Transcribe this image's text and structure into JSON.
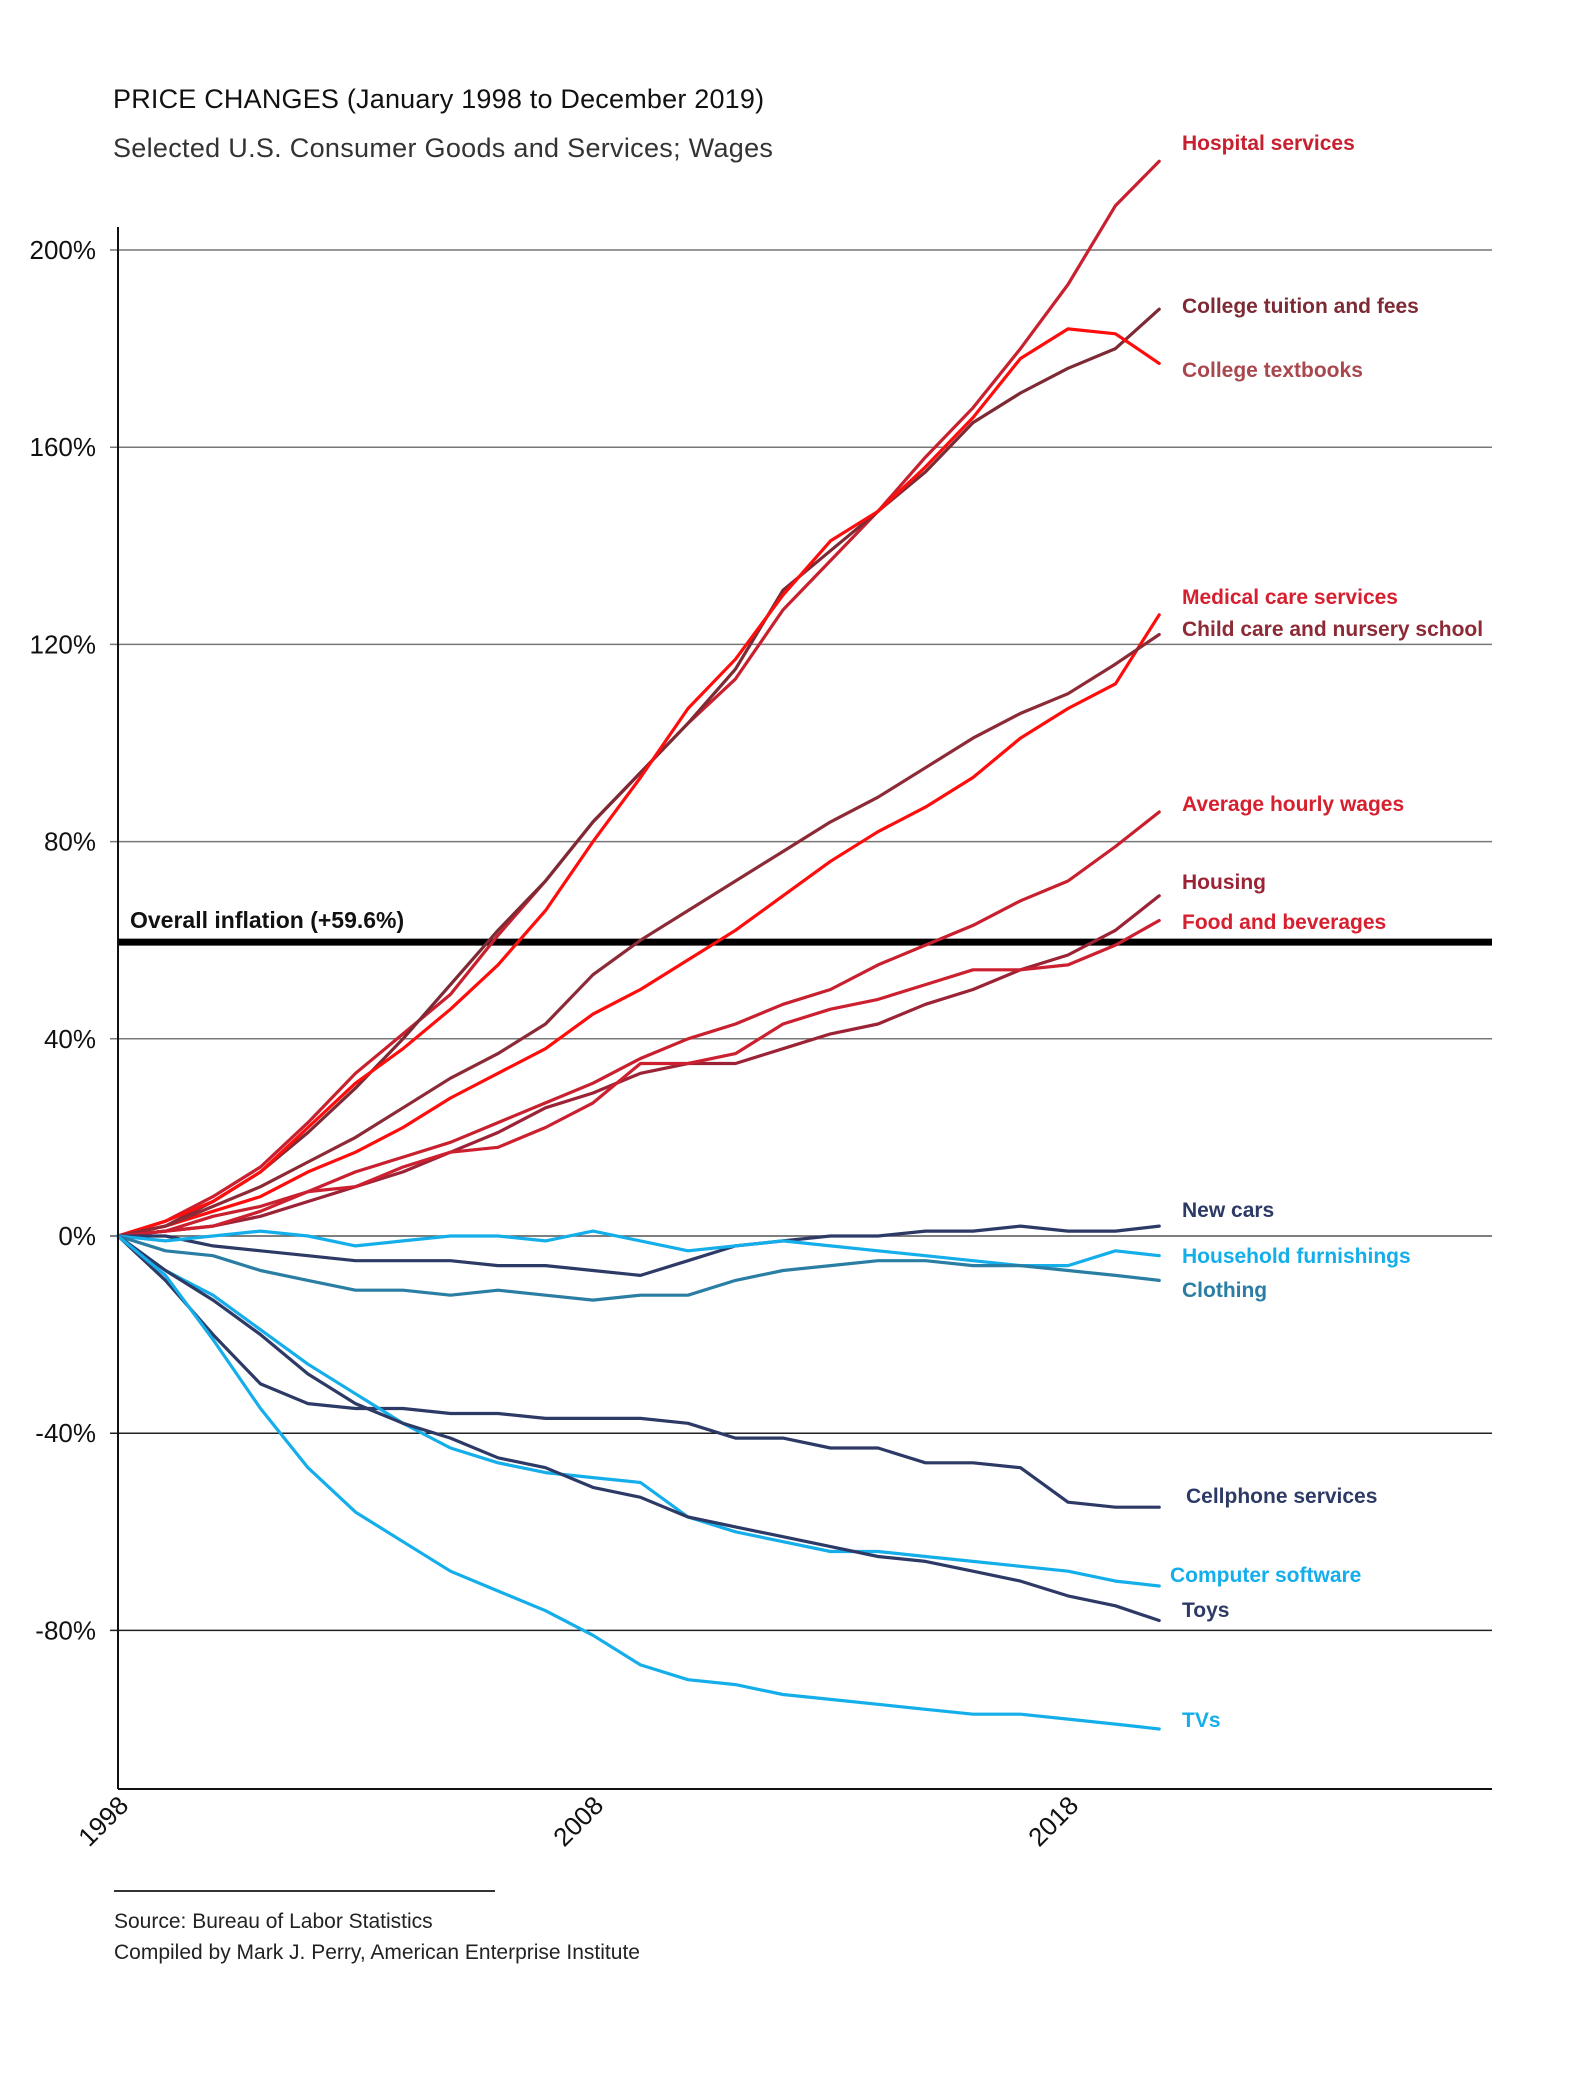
{
  "header": {
    "title": "PRICE CHANGES (January 1998 to December 2019)",
    "subtitle": "Selected U.S. Consumer Goods and Services; Wages"
  },
  "footer": {
    "source": "Source:  Bureau of Labor Statistics",
    "compiled": "Compiled by Mark J. Perry, American Enterprise Institute"
  },
  "chart_data": {
    "type": "line",
    "title": "PRICE CHANGES (January 1998 to December 2019)",
    "subtitle": "Selected U.S. Consumer Goods and Services; Wages",
    "xlabel": "",
    "ylabel": "",
    "x": [
      1998,
      1999,
      2000,
      2001,
      2002,
      2003,
      2004,
      2005,
      2006,
      2007,
      2008,
      2009,
      2010,
      2011,
      2012,
      2013,
      2014,
      2015,
      2016,
      2017,
      2018,
      2019,
      2019.92
    ],
    "xlim": [
      1998,
      2027
    ],
    "ylim": [
      -112,
      205
    ],
    "grid": true,
    "x_ticks": [
      {
        "value": 1998,
        "label": "1998"
      },
      {
        "value": 2008,
        "label": "2008"
      },
      {
        "value": 2018,
        "label": "2018"
      }
    ],
    "y_ticks": [
      {
        "value": 200,
        "label": "200%"
      },
      {
        "value": 160,
        "label": "160%"
      },
      {
        "value": 120,
        "label": "120%"
      },
      {
        "value": 80,
        "label": "80%"
      },
      {
        "value": 40,
        "label": "40%"
      },
      {
        "value": 0,
        "label": "0%"
      },
      {
        "value": -40,
        "label": "-40%"
      },
      {
        "value": -80,
        "label": "-80%"
      }
    ],
    "reference_line": {
      "value": 59.6,
      "label": "Overall inflation (+59.6%)",
      "color": "#000000"
    },
    "legend": "direct labels at right end of each line",
    "series": [
      {
        "name": "Hospital services",
        "color": "#c8202f",
        "label_color": "#c8202f",
        "label_offset": 0,
        "values": [
          0,
          3,
          8,
          14,
          23,
          33,
          41,
          49,
          61,
          72,
          84,
          94,
          104,
          113,
          127,
          137,
          147,
          158,
          168,
          180,
          193,
          209,
          218
        ]
      },
      {
        "name": "College tuition and fees",
        "color": "#7d2a35",
        "label_color": "#7d2a35",
        "label_offset": 0,
        "values": [
          0,
          2,
          7,
          13,
          21,
          30,
          40,
          51,
          62,
          72,
          84,
          94,
          104,
          115,
          131,
          139,
          147,
          155,
          165,
          171,
          176,
          180,
          188
        ]
      },
      {
        "name": "College textbooks",
        "color": "#ff0d0d",
        "label_color": "#a9474e",
        "label_offset": 4,
        "values": [
          0,
          3,
          7,
          13,
          22,
          31,
          38,
          46,
          55,
          66,
          80,
          93,
          107,
          117,
          130,
          141,
          147,
          156,
          166,
          178,
          184,
          183,
          177
        ]
      },
      {
        "name": "Medical care services",
        "color": "#ff0d0d",
        "label_color": "#d7202f",
        "label_offset": -7,
        "values": [
          0,
          2,
          5,
          8,
          13,
          17,
          22,
          28,
          33,
          38,
          45,
          50,
          56,
          62,
          69,
          76,
          82,
          87,
          93,
          101,
          107,
          112,
          126
        ]
      },
      {
        "name": "Child care and nursery school",
        "color": "#8c2a36",
        "label_color": "#8c2a36",
        "label_offset": 2,
        "values": [
          0,
          2,
          6,
          10,
          15,
          20,
          26,
          32,
          37,
          43,
          53,
          60,
          66,
          72,
          78,
          84,
          89,
          95,
          101,
          106,
          110,
          116,
          122
        ]
      },
      {
        "name": "Average hourly wages",
        "color": "#c8202f",
        "label_color": "#d7202f",
        "label_offset": 0,
        "values": [
          0,
          1,
          4,
          6,
          9,
          13,
          16,
          19,
          23,
          27,
          31,
          36,
          40,
          43,
          47,
          50,
          55,
          59,
          63,
          68,
          72,
          79,
          86
        ]
      },
      {
        "name": "Housing",
        "color": "#9b2335",
        "label_color": "#9b2335",
        "label_offset": -2,
        "values": [
          0,
          1,
          2,
          4,
          7,
          10,
          13,
          17,
          21,
          26,
          29,
          33,
          35,
          35,
          38,
          41,
          43,
          47,
          50,
          54,
          57,
          62,
          69
        ]
      },
      {
        "name": "Food and beverages",
        "color": "#cc2030",
        "label_color": "#d7202f",
        "label_offset": 2,
        "values": [
          0,
          1,
          2,
          5,
          9,
          10,
          14,
          17,
          18,
          22,
          27,
          35,
          35,
          37,
          43,
          46,
          48,
          51,
          54,
          54,
          55,
          59,
          64
        ]
      },
      {
        "name": "New cars",
        "color": "#2d3a66",
        "label_color": "#2d3a66",
        "label_offset": 2,
        "values": [
          0,
          0,
          -2,
          -3,
          -4,
          -5,
          -5,
          -5,
          -6,
          -6,
          -7,
          -8,
          -5,
          -2,
          -1,
          0,
          0,
          1,
          1,
          2,
          1,
          1,
          2
        ]
      },
      {
        "name": "Household furnishings",
        "color": "#14aeea",
        "label_color": "#14aeea",
        "label_offset": -2,
        "values": [
          0,
          -1,
          0,
          1,
          0,
          -2,
          -1,
          0,
          0,
          -1,
          1,
          -1,
          -3,
          -2,
          -1,
          -2,
          -3,
          -4,
          -5,
          -6,
          -6,
          -3,
          -4
        ]
      },
      {
        "name": "Clothing",
        "color": "#2a7ea3",
        "label_color": "#2a7ea3",
        "label_offset": -2,
        "values": [
          0,
          -3,
          -4,
          -7,
          -9,
          -11,
          -11,
          -12,
          -11,
          -12,
          -13,
          -12,
          -12,
          -9,
          -7,
          -6,
          -5,
          -5,
          -6,
          -6,
          -7,
          -8,
          -9
        ]
      },
      {
        "name": "Cellphone services",
        "color": "#2d3a66",
        "label_color": "#2d3a66",
        "label_offset": 1,
        "values": [
          0,
          -9,
          -20,
          -30,
          -34,
          -35,
          -35,
          -36,
          -36,
          -37,
          -37,
          -37,
          -38,
          -41,
          -41,
          -43,
          -43,
          -46,
          -46,
          -47,
          -54,
          -55,
          -55
        ]
      },
      {
        "name": "Computer software",
        "color": "#14aeea",
        "label_color": "#14aeea",
        "label_offset": 1,
        "values": [
          0,
          -7,
          -12,
          -19,
          -26,
          -32,
          -38,
          -43,
          -46,
          -48,
          -49,
          -50,
          -57,
          -60,
          -62,
          -64,
          -64,
          -65,
          -66,
          -67,
          -68,
          -70,
          -71
        ]
      },
      {
        "name": "Toys",
        "color": "#2d3a66",
        "label_color": "#2d3a66",
        "label_offset": 0,
        "values": [
          0,
          -7,
          -13,
          -20,
          -28,
          -34,
          -38,
          -41,
          -45,
          -47,
          -51,
          -53,
          -57,
          -59,
          -61,
          -63,
          -65,
          -66,
          -68,
          -70,
          -73,
          -75,
          -78
        ]
      },
      {
        "name": "TVs",
        "color": "#14aeea",
        "label_color": "#14aeea",
        "label_offset": 0,
        "values": [
          0,
          -8,
          -21,
          -35,
          -47,
          -56,
          -62,
          -68,
          -72,
          -76,
          -81,
          -87,
          -90,
          -91,
          -93,
          -94,
          -95,
          -96,
          -97,
          -97,
          -98,
          -99,
          -100
        ]
      }
    ]
  }
}
